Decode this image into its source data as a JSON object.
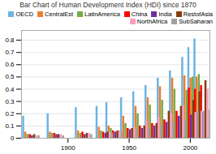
{
  "chart_data": {
    "type": "bar",
    "title": "Bar Chart of Human Development Index (HDI) since 1870",
    "x": [
      1870,
      1890,
      1913,
      1930,
      1938,
      1950,
      1960,
      1970,
      1980,
      1990,
      2000,
      2005,
      2010
    ],
    "series": [
      {
        "name": "OECD",
        "color": "#6CB4E4",
        "values": [
          0.18,
          0.2,
          0.25,
          0.26,
          0.29,
          0.33,
          0.38,
          0.43,
          0.49,
          0.55,
          0.66,
          0.74,
          0.81
        ]
      },
      {
        "name": "CentralEst",
        "color": "#ED7D31",
        "values": [
          0.05,
          0.05,
          0.06,
          0.09,
          0.1,
          0.18,
          0.26,
          0.33,
          0.42,
          0.49,
          0.51,
          0.49,
          0.5
        ]
      },
      {
        "name": "LatinAmerica",
        "color": "#70AD47",
        "values": [
          0.03,
          0.04,
          0.04,
          0.06,
          0.08,
          0.12,
          0.2,
          0.27,
          0.31,
          0.4,
          0.39,
          0.5,
          0.52
        ]
      },
      {
        "name": "China",
        "color": "#FF0000",
        "values": [
          0.03,
          0.04,
          0.05,
          0.05,
          0.06,
          0.08,
          0.1,
          0.12,
          0.15,
          0.22,
          0.41,
          0.4,
          0.43
        ]
      },
      {
        "name": "India",
        "color": "#7030A0",
        "values": [
          0.02,
          0.03,
          0.03,
          0.04,
          0.05,
          0.07,
          0.08,
          0.1,
          0.13,
          0.18,
          0.19,
          0.2,
          0.21
        ]
      },
      {
        "name": "RestofAsia",
        "color": "#843C0C",
        "values": [
          0.03,
          0.03,
          0.04,
          0.05,
          0.06,
          0.08,
          0.1,
          0.12,
          0.22,
          0.26,
          0.31,
          0.38,
          0.47
        ]
      },
      {
        "name": "NorthAfrica",
        "color": "#FF9DC0",
        "values": [
          0.02,
          0.03,
          0.04,
          0.05,
          0.06,
          0.09,
          0.14,
          0.17,
          0.2,
          0.26,
          0.21,
          0.22,
          0.4
        ]
      },
      {
        "name": "SubSaharan",
        "color": "#A0A0A0",
        "values": [
          0.02,
          0.02,
          0.03,
          0.04,
          0.05,
          0.07,
          0.08,
          0.1,
          0.13,
          0.14,
          0.22,
          0.22,
          0.23
        ]
      }
    ],
    "xlim": [
      1862,
      2016
    ],
    "xticks": [
      1900,
      1950,
      2000
    ],
    "ylim": [
      0,
      0.88
    ],
    "yticks": [
      0,
      0.1,
      0.2,
      0.3,
      0.4,
      0.5,
      0.6,
      0.7,
      0.8
    ],
    "grid": true,
    "legend": "upper right"
  }
}
